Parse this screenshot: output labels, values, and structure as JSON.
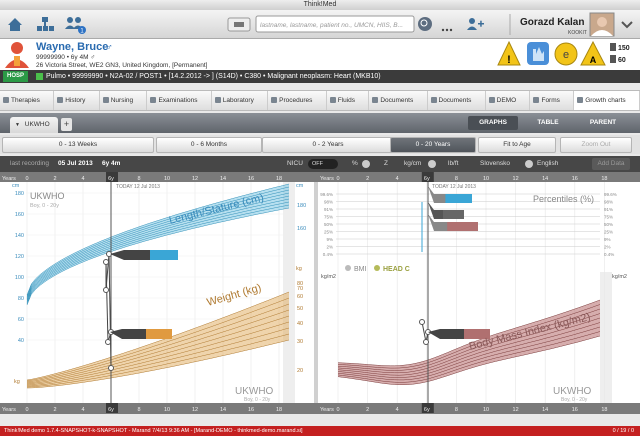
{
  "window_title": "Think!Med",
  "toolbar": {
    "badge": "1",
    "search_placeholder": "lastname, lastname, patient no., UMCN, HIIS, B...",
    "user_name": "Gorazd Kalan",
    "user_org": "KOOKIT"
  },
  "patient": {
    "name": "Wayne, Bruce",
    "sex": "♂",
    "id_line": "99999990 • 6y 4M ♂",
    "address": "26 Victoria Street, WE2 GN3, United Kingdom, [Permanent]",
    "stat1": "150",
    "stat2": "60"
  },
  "episode": {
    "badge": "HOSP",
    "text": "Pulmo • 99999990 • N2A-02 / POST1 • [14.2.2012 -> ] (S14D) • C380 • Malignant neoplasm: Heart (MKB10)"
  },
  "tabs": [
    "Therapies",
    "History",
    "Nursing",
    "Examinations",
    "Laboratory",
    "Procedures",
    "Fluids",
    "Documents",
    "Documents",
    "DEMO",
    "Forms",
    "Growth charts"
  ],
  "chart_tabs": {
    "active": "UKWHO",
    "add": "+",
    "views": [
      "GRAPHS",
      "TABLE",
      "PARENT"
    ]
  },
  "ranges": [
    "0 - 13 Weeks",
    "0 - 6 Months",
    "0 - 2 Years",
    "0 - 20 Years"
  ],
  "fit": "Fit to Age",
  "zoom": "Zoom Out",
  "settings": {
    "last_label": "last recording",
    "last_date": "05 Jul 2013",
    "last_age": "6y 4m",
    "nicu": "NICU",
    "off": "OFF",
    "pct": "%",
    "z": "Z",
    "metric": "kg/cm",
    "imperial": "lb/ft",
    "lang1": "Slovensko",
    "lang2": "English",
    "add": "Add Data"
  },
  "years_axis": {
    "label": "Years",
    "ticks": [
      "0",
      "2",
      "4",
      "6y",
      "8",
      "10",
      "12",
      "14",
      "16",
      "18"
    ]
  },
  "left_chart": {
    "reference": "UKWHO",
    "cohort": "Boy, 0 - 20y",
    "today": "TODAY 12 Jul 2013",
    "length_title": "Length/Stature (cm)",
    "weight_title": "Weight (kg)",
    "cm_label": "cm",
    "kg_label": "kg",
    "cm_ticks": [
      "180",
      "160",
      "140",
      "120",
      "100",
      "80",
      "60",
      "40"
    ],
    "cm_ticks_right": [
      "180",
      "160"
    ],
    "kg_ticks": [
      "80",
      "70",
      "60",
      "50",
      "40",
      "30",
      "20"
    ]
  },
  "right_chart": {
    "reference": "UKWHO",
    "cohort": "Boy, 0 - 20y",
    "today": "TODAY 12 Jul 2013",
    "percentile_title": "Percentiles (%)",
    "bmi": "BMI",
    "head": "HEAD C",
    "bmi_title": "Body Mass Index (kg/m2)",
    "unit": "kg/m2",
    "pct_ticks": [
      "99.6%",
      "98%",
      "91%",
      "75%",
      "50%",
      "25%",
      "9%",
      "2%",
      "0.4%"
    ]
  },
  "status": "Think!Med demo 1.7.4-SNAPSHOT-k-SNAPSHOT - Marand 7/4/13 9:36 AM - [Marand-DEMO - thinkmed-demo.marand.si]",
  "status_right": "0 / 19 / 0"
}
